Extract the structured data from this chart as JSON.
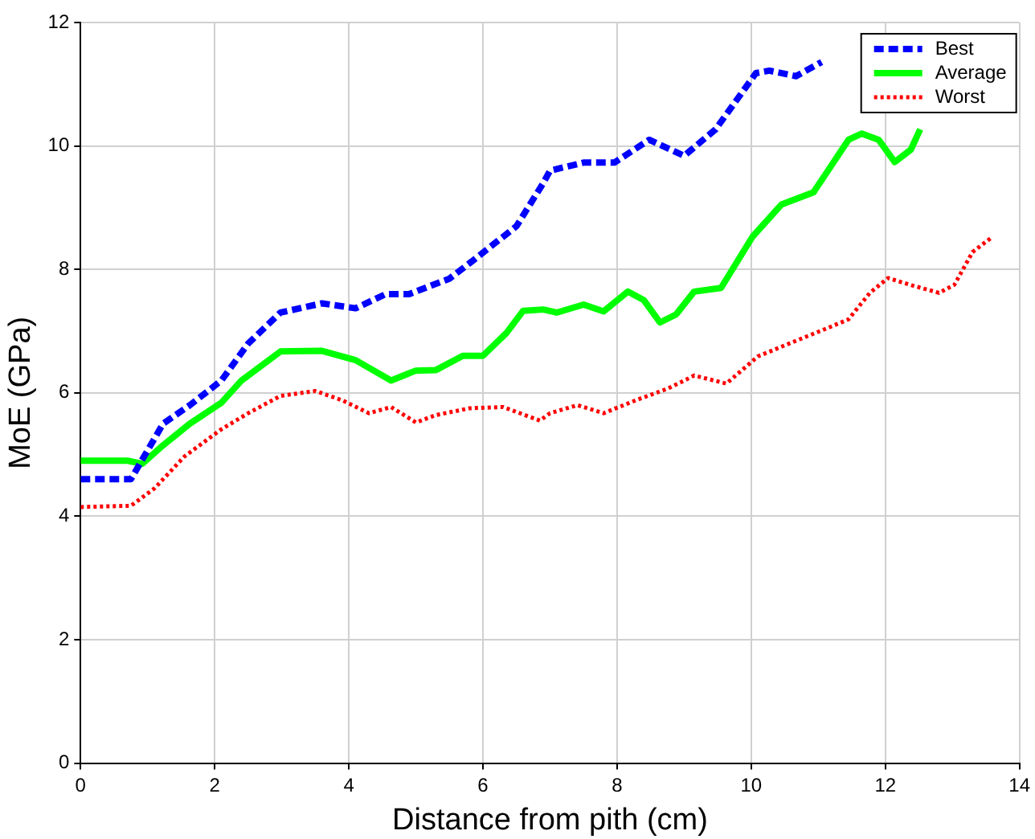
{
  "chart_data": {
    "type": "line",
    "xlabel": "Distance from pith (cm)",
    "ylabel": "MoE (GPa)",
    "xlim": [
      0,
      14
    ],
    "xticks": [
      0,
      2,
      4,
      6,
      8,
      10,
      12,
      14
    ],
    "ylim": [
      0,
      12
    ],
    "yticks": [
      0,
      2,
      4,
      6,
      8,
      10,
      12
    ],
    "grid": true,
    "legend": "top right",
    "series": [
      {
        "name": "Best",
        "color": "#0000ff",
        "line_style": "dashed",
        "x": [
          0,
          0.75,
          1.23,
          1.63,
          2.1,
          2.5,
          2.98,
          3.6,
          4.1,
          4.55,
          4.9,
          5.5,
          5.8,
          6.15,
          6.5,
          6.9,
          7.0,
          7.5,
          7.96,
          8.48,
          9.0,
          9.47,
          10.07,
          10.27,
          10.67,
          11.05
        ],
        "values": [
          4.6,
          4.6,
          5.5,
          5.8,
          6.2,
          6.8,
          7.3,
          7.45,
          7.37,
          7.6,
          7.6,
          7.85,
          8.1,
          8.4,
          8.7,
          9.4,
          9.6,
          9.73,
          9.73,
          10.1,
          9.84,
          10.27,
          11.18,
          11.22,
          11.13,
          11.36
        ]
      },
      {
        "name": "Average",
        "color": "#00ff00",
        "line_style": "solid",
        "x": [
          0,
          0.7,
          0.92,
          1.23,
          1.63,
          2.1,
          2.4,
          2.98,
          3.6,
          4.1,
          4.63,
          5.0,
          5.3,
          5.7,
          6.0,
          6.35,
          6.6,
          6.9,
          7.1,
          7.5,
          7.8,
          8.16,
          8.4,
          8.64,
          8.88,
          9.15,
          9.55,
          10.02,
          10.45,
          10.93,
          11.45,
          11.65,
          11.9,
          12.14,
          12.38,
          12.52
        ],
        "values": [
          4.9,
          4.9,
          4.85,
          5.15,
          5.5,
          5.84,
          6.2,
          6.67,
          6.68,
          6.53,
          6.2,
          6.36,
          6.37,
          6.6,
          6.6,
          6.97,
          7.33,
          7.35,
          7.3,
          7.43,
          7.32,
          7.64,
          7.5,
          7.14,
          7.27,
          7.64,
          7.7,
          8.53,
          9.05,
          9.25,
          10.1,
          10.2,
          10.1,
          9.74,
          9.94,
          10.27
        ]
      },
      {
        "name": "Worst",
        "color": "#ff0000",
        "line_style": "dotted",
        "x": [
          0,
          0.75,
          1.1,
          1.55,
          2.1,
          2.5,
          2.98,
          3.5,
          3.9,
          4.3,
          4.63,
          5.0,
          5.3,
          5.8,
          6.3,
          6.85,
          7.0,
          7.41,
          7.8,
          8.28,
          8.76,
          9.15,
          9.63,
          10.1,
          10.57,
          11.05,
          11.45,
          11.77,
          12.04,
          12.4,
          12.8,
          13.03,
          13.3,
          13.6
        ],
        "values": [
          4.15,
          4.17,
          4.45,
          4.97,
          5.41,
          5.67,
          5.95,
          6.03,
          5.88,
          5.67,
          5.77,
          5.52,
          5.64,
          5.75,
          5.77,
          5.55,
          5.67,
          5.8,
          5.67,
          5.88,
          6.07,
          6.28,
          6.15,
          6.59,
          6.8,
          7.01,
          7.19,
          7.62,
          7.86,
          7.74,
          7.62,
          7.75,
          8.28,
          8.53
        ]
      }
    ]
  }
}
